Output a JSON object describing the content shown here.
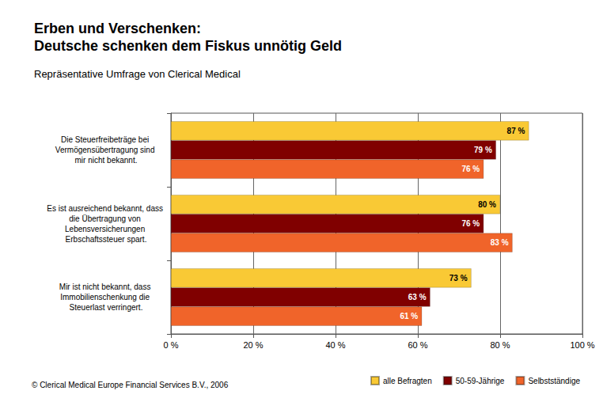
{
  "chart_data": {
    "type": "bar",
    "orientation": "horizontal",
    "title": "Erben und Verschenken:\nDeutsche schenken dem Fiskus unnötig Geld",
    "subtitle": "Repräsentative Umfrage von Clerical Medical",
    "annotations": [
      "© Clerical Medical Europe Financial Services B.V., 2006"
    ],
    "categories": [
      "Die Steuerfreibeträge bei Vermögensübertragung sind mir nicht bekannt.",
      "Es ist ausreichend bekannt, dass die Übertragung von Lebensversicherungen Erbschaftssteuer spart.",
      "Mir ist nicht bekannt, dass Immobilienschenkung die Steuerlast verringert."
    ],
    "series": [
      {
        "name": "alle Befragten",
        "color": "#f9c935",
        "values": [
          87,
          80,
          73
        ],
        "value_labels": [
          "87 %",
          "80 %",
          "73 %"
        ]
      },
      {
        "name": "50-59-Jährige",
        "color": "#800000",
        "values": [
          79,
          76,
          63
        ],
        "value_labels": [
          "79 %",
          "76 %",
          "63 %"
        ]
      },
      {
        "name": "Selbstständige",
        "color": "#f0642a",
        "values": [
          76,
          83,
          61
        ],
        "value_labels": [
          "76 %",
          "83 %",
          "61 %"
        ]
      }
    ],
    "xlim": [
      0,
      100
    ],
    "xticks": [
      {
        "value": 0,
        "label": "0 %"
      },
      {
        "value": 20,
        "label": "20 %"
      },
      {
        "value": 40,
        "label": "40 %"
      },
      {
        "value": 60,
        "label": "60 %"
      },
      {
        "value": 80,
        "label": "80 %"
      },
      {
        "value": 100,
        "label": "100 %"
      }
    ],
    "grid": true,
    "legend": "bottom-right",
    "data_labels": true
  }
}
